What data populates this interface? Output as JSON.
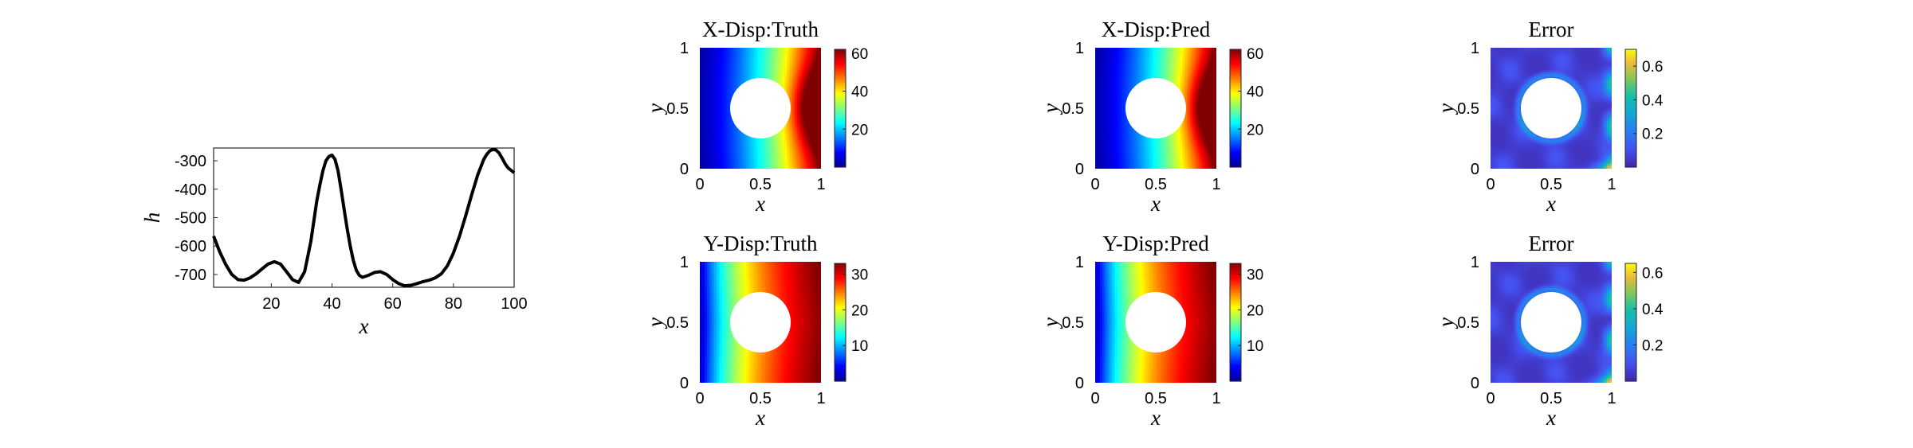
{
  "chart_data": [
    {
      "id": "h-profile",
      "type": "line",
      "title": "",
      "xlabel": "x",
      "ylabel": "h",
      "xlim": [
        1,
        100
      ],
      "ylim": [
        -745,
        -255
      ],
      "xticks": [
        20,
        40,
        60,
        80,
        100
      ],
      "yticks": [
        -700,
        -600,
        -500,
        -400,
        -300
      ],
      "grid": false,
      "series": [
        {
          "x": [
            1,
            3,
            5,
            7,
            9,
            11,
            13,
            15,
            17,
            19,
            21,
            23,
            25,
            27,
            29,
            31,
            33,
            35,
            36,
            37,
            38,
            39,
            40,
            41,
            42,
            43,
            44,
            45,
            46,
            47,
            48,
            49,
            50,
            52,
            54,
            56,
            58,
            60,
            62,
            64,
            66,
            68,
            70,
            72,
            74,
            76,
            78,
            80,
            82,
            84,
            86,
            88,
            90,
            91,
            92,
            93,
            94,
            95,
            96,
            97,
            98,
            100
          ],
          "values": [
            -565,
            -620,
            -665,
            -700,
            -718,
            -720,
            -712,
            -698,
            -680,
            -663,
            -655,
            -663,
            -690,
            -718,
            -728,
            -690,
            -585,
            -440,
            -385,
            -335,
            -300,
            -285,
            -280,
            -295,
            -335,
            -400,
            -470,
            -540,
            -600,
            -650,
            -685,
            -703,
            -710,
            -703,
            -693,
            -690,
            -700,
            -718,
            -732,
            -740,
            -738,
            -732,
            -725,
            -720,
            -712,
            -698,
            -670,
            -625,
            -565,
            -495,
            -420,
            -350,
            -295,
            -277,
            -265,
            -260,
            -262,
            -272,
            -290,
            -310,
            -325,
            -342
          ]
        }
      ]
    },
    {
      "id": "x-disp-truth",
      "type": "heatmap",
      "title": "X-Disp:Truth",
      "xlabel": "x",
      "ylabel": "y",
      "xlim": [
        0,
        1
      ],
      "ylim": [
        0,
        1
      ],
      "xticks": [
        "0",
        "0.5",
        "1"
      ],
      "yticks": [
        "0",
        "0.5",
        "1"
      ],
      "hole": {
        "center": [
          0.5,
          0.5
        ],
        "radius": 0.25
      },
      "colormap": "jet",
      "clim": [
        0,
        62
      ],
      "colorbar_ticks": [
        20,
        40,
        60
      ]
    },
    {
      "id": "x-disp-pred",
      "type": "heatmap",
      "title": "X-Disp:Pred",
      "xlabel": "x",
      "ylabel": "y",
      "xlim": [
        0,
        1
      ],
      "ylim": [
        0,
        1
      ],
      "xticks": [
        "0",
        "0.5",
        "1"
      ],
      "yticks": [
        "0",
        "0.5",
        "1"
      ],
      "hole": {
        "center": [
          0.5,
          0.5
        ],
        "radius": 0.25
      },
      "colormap": "jet",
      "clim": [
        0,
        62
      ],
      "colorbar_ticks": [
        20,
        40,
        60
      ]
    },
    {
      "id": "x-disp-error",
      "type": "heatmap",
      "title": "Error",
      "xlabel": "x",
      "ylabel": "y",
      "xlim": [
        0,
        1
      ],
      "ylim": [
        0,
        1
      ],
      "xticks": [
        "0",
        "0.5",
        "1"
      ],
      "yticks": [
        "0",
        "0.5",
        "1"
      ],
      "hole": {
        "center": [
          0.5,
          0.5
        ],
        "radius": 0.25
      },
      "colormap": "parula",
      "clim": [
        0,
        0.7
      ],
      "colorbar_ticks": [
        0.2,
        0.4,
        0.6
      ]
    },
    {
      "id": "y-disp-truth",
      "type": "heatmap",
      "title": "Y-Disp:Truth",
      "xlabel": "x",
      "ylabel": "y",
      "xlim": [
        0,
        1
      ],
      "ylim": [
        0,
        1
      ],
      "xticks": [
        "0",
        "0.5",
        "1"
      ],
      "yticks": [
        "0",
        "0.5",
        "1"
      ],
      "hole": {
        "center": [
          0.5,
          0.5
        ],
        "radius": 0.25
      },
      "colormap": "jet",
      "clim": [
        0,
        33
      ],
      "colorbar_ticks": [
        10,
        20,
        30
      ]
    },
    {
      "id": "y-disp-pred",
      "type": "heatmap",
      "title": "Y-Disp:Pred",
      "xlabel": "x",
      "ylabel": "y",
      "xlim": [
        0,
        1
      ],
      "ylim": [
        0,
        1
      ],
      "xticks": [
        "0",
        "0.5",
        "1"
      ],
      "yticks": [
        "0",
        "0.5",
        "1"
      ],
      "hole": {
        "center": [
          0.5,
          0.5
        ],
        "radius": 0.25
      },
      "colormap": "jet",
      "clim": [
        0,
        33
      ],
      "colorbar_ticks": [
        10,
        20,
        30
      ]
    },
    {
      "id": "y-disp-error",
      "type": "heatmap",
      "title": "Error",
      "xlabel": "x",
      "ylabel": "y",
      "xlim": [
        0,
        1
      ],
      "ylim": [
        0,
        1
      ],
      "xticks": [
        "0",
        "0.5",
        "1"
      ],
      "yticks": [
        "0",
        "0.5",
        "1"
      ],
      "hole": {
        "center": [
          0.5,
          0.5
        ],
        "radius": 0.25
      },
      "colormap": "parula",
      "clim": [
        0,
        0.65
      ],
      "colorbar_ticks": [
        0.2,
        0.4,
        0.6
      ]
    }
  ]
}
